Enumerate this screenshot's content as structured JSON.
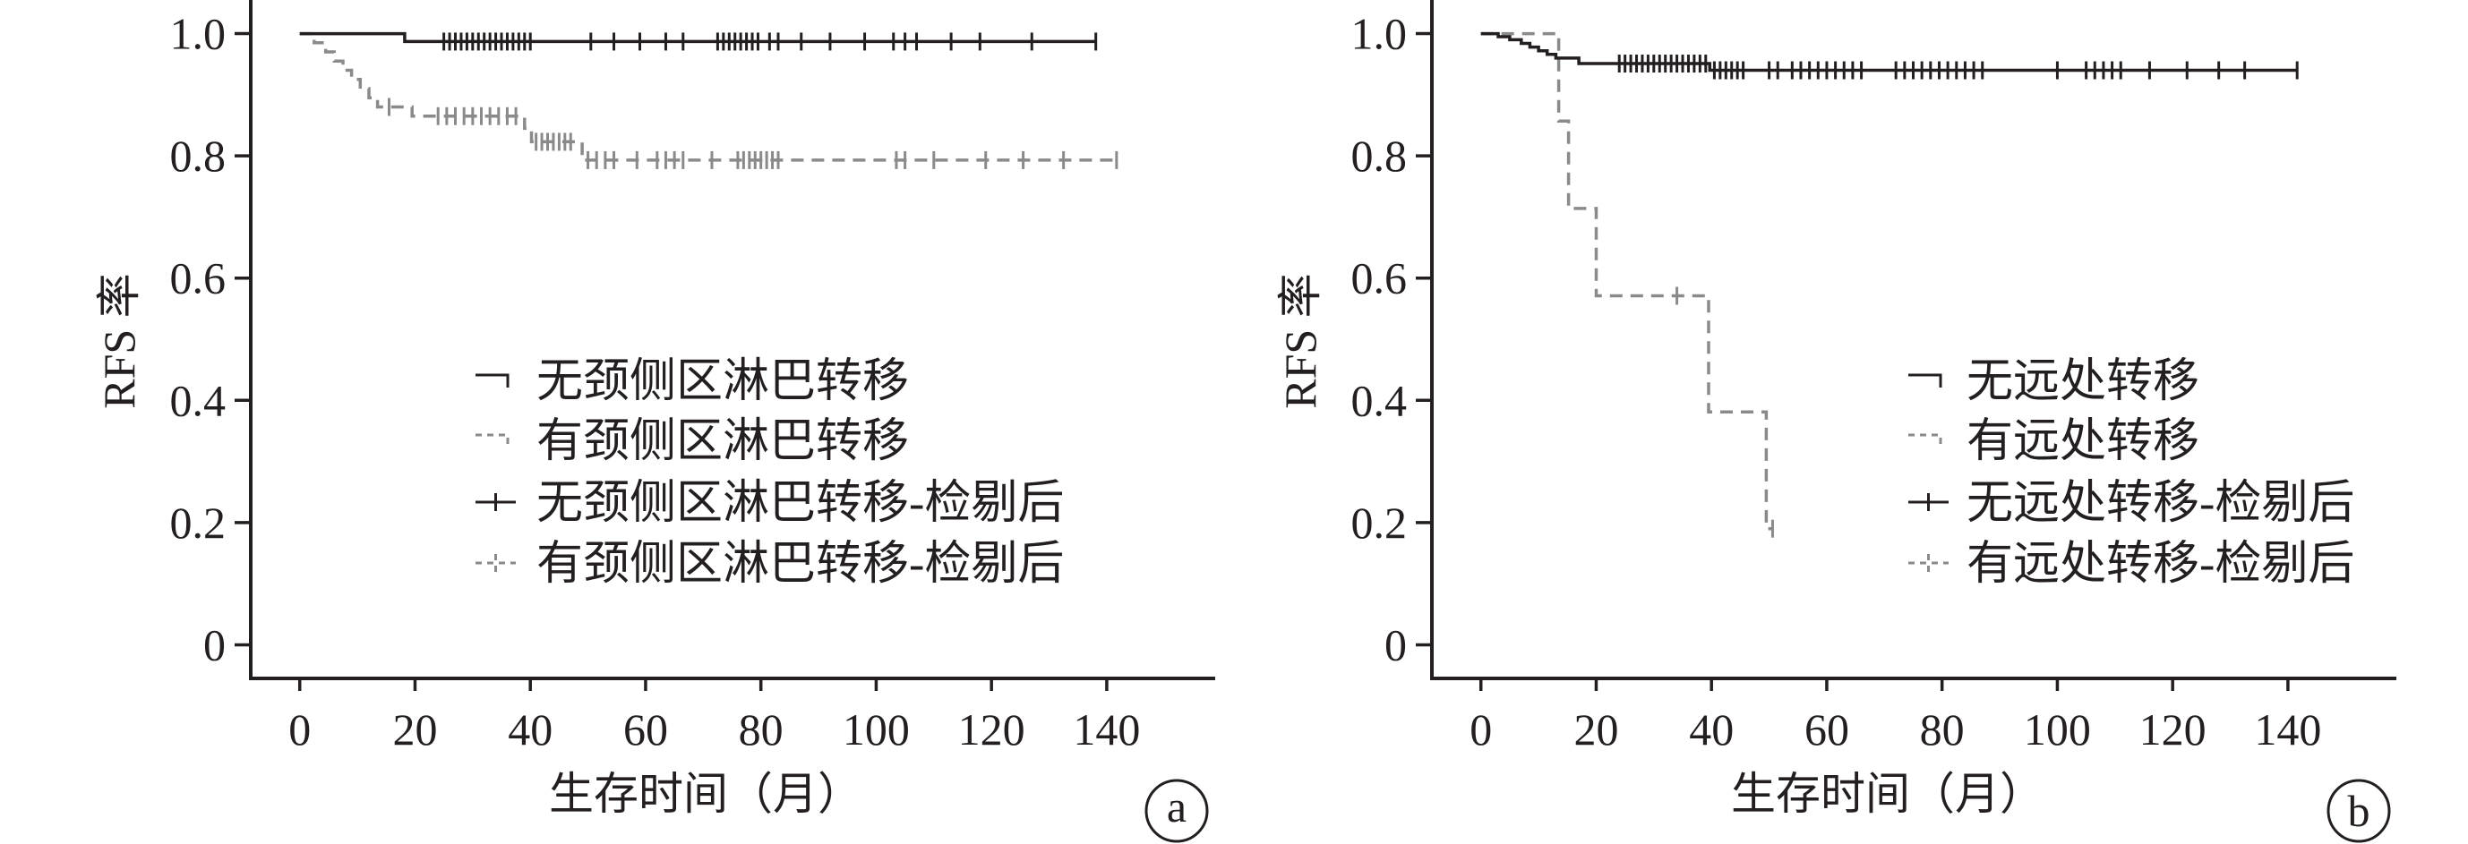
{
  "chart_data": [
    {
      "panel_label": "a",
      "type": "line",
      "drawstyle": "steps-post",
      "xlabel": "生存时间（月）",
      "ylabel": "RFS 率",
      "x_ticks": [
        "0",
        "20",
        "40",
        "60",
        "80",
        "100",
        "120",
        "140"
      ],
      "y_ticks": [
        "0",
        "0.2",
        "0.4",
        "0.6",
        "0.8",
        "1.0"
      ],
      "xlim": [
        -8.5,
        158.5
      ],
      "ylim": [
        -0.055,
        1.055
      ],
      "grid": false,
      "legend_position": "center",
      "series": [
        {
          "name": "无颈侧区淋巴转移",
          "kind": "survival",
          "color": "#231f20",
          "dashed": false,
          "x": [
            0,
            18.2,
            138.1
          ],
          "y": [
            1.0,
            0.987,
            0.987
          ]
        },
        {
          "name": "有颈侧区淋巴转移",
          "kind": "survival",
          "color": "#8a8a8a",
          "dashed": true,
          "x": [
            0,
            2.5,
            4.5,
            6,
            7.5,
            9,
            10.5,
            12,
            13.5,
            19.5,
            39,
            40.2,
            49,
            141.7
          ],
          "y": [
            1.0,
            0.985,
            0.97,
            0.955,
            0.94,
            0.925,
            0.91,
            0.895,
            0.88,
            0.865,
            0.845,
            0.823,
            0.793,
            0.793
          ]
        },
        {
          "name": "无颈侧区淋巴转移-检剔后",
          "kind": "censored",
          "color": "#231f20",
          "dashed": false,
          "x": [
            25,
            26,
            27,
            28,
            29,
            30,
            31,
            32,
            33,
            34,
            35,
            36,
            37,
            38,
            39,
            40,
            50.5,
            54.5,
            59,
            63.5,
            66.5,
            72.5,
            73.5,
            74.5,
            75.5,
            76.5,
            77.5,
            78.5,
            79.5,
            81.5,
            83,
            87,
            92,
            98,
            103,
            105,
            107,
            113,
            118,
            127,
            138.1
          ],
          "y": [
            0.987,
            0.987,
            0.987,
            0.987,
            0.987,
            0.987,
            0.987,
            0.987,
            0.987,
            0.987,
            0.987,
            0.987,
            0.987,
            0.987,
            0.987,
            0.987,
            0.987,
            0.987,
            0.987,
            0.987,
            0.987,
            0.987,
            0.987,
            0.987,
            0.987,
            0.987,
            0.987,
            0.987,
            0.987,
            0.987,
            0.987,
            0.987,
            0.987,
            0.987,
            0.987,
            0.987,
            0.987,
            0.987,
            0.987,
            0.987,
            0.987
          ]
        },
        {
          "name": "有颈侧区淋巴转移-检剔后",
          "kind": "censored",
          "color": "#8a8a8a",
          "dashed": true,
          "x": [
            15.5,
            24,
            25.5,
            27,
            28.5,
            30,
            31.5,
            33,
            34.5,
            36,
            37.5,
            41,
            42,
            43,
            44,
            45,
            46,
            47,
            50,
            51.5,
            53,
            54.5,
            58.5,
            62,
            63.5,
            65,
            66.5,
            71.5,
            76,
            77,
            78,
            79,
            80,
            81,
            82,
            83,
            103.5,
            105,
            110,
            119,
            125.5,
            132.5,
            141.7
          ],
          "y": [
            0.88,
            0.865,
            0.865,
            0.865,
            0.865,
            0.865,
            0.865,
            0.865,
            0.865,
            0.865,
            0.865,
            0.823,
            0.823,
            0.823,
            0.823,
            0.823,
            0.823,
            0.823,
            0.793,
            0.793,
            0.793,
            0.793,
            0.793,
            0.793,
            0.793,
            0.793,
            0.793,
            0.793,
            0.793,
            0.793,
            0.793,
            0.793,
            0.793,
            0.793,
            0.793,
            0.793,
            0.793,
            0.793,
            0.793,
            0.793,
            0.793,
            0.793,
            0.793
          ]
        }
      ]
    },
    {
      "panel_label": "b",
      "type": "line",
      "drawstyle": "steps-post",
      "xlabel": "生存时间（月）",
      "ylabel": "RFS 率",
      "x_ticks": [
        "0",
        "20",
        "40",
        "60",
        "80",
        "100",
        "120",
        "140"
      ],
      "y_ticks": [
        "0",
        "0.2",
        "0.4",
        "0.6",
        "0.8",
        "1.0"
      ],
      "xlim": [
        -8.5,
        158.5
      ],
      "ylim": [
        -0.055,
        1.055
      ],
      "grid": false,
      "legend_position": "center-right",
      "series": [
        {
          "name": "无远处转移",
          "kind": "survival",
          "color": "#231f20",
          "dashed": false,
          "x": [
            0,
            3,
            5,
            7,
            8.5,
            10,
            11.5,
            13,
            17,
            39.7,
            141.6
          ],
          "y": [
            1.0,
            0.995,
            0.99,
            0.984,
            0.978,
            0.972,
            0.966,
            0.96,
            0.951,
            0.94,
            0.94
          ]
        },
        {
          "name": "有远处转移",
          "kind": "survival",
          "color": "#8a8a8a",
          "dashed": true,
          "x": [
            0,
            13.5,
            15.2,
            20,
            39.5,
            49.5,
            50.6
          ],
          "y": [
            1.0,
            0.857,
            0.714,
            0.571,
            0.381,
            0.19,
            0.19
          ]
        },
        {
          "name": "无远处转移-检剔后",
          "kind": "censored",
          "color": "#231f20",
          "dashed": false,
          "x": [
            24,
            25,
            26,
            27,
            28,
            29,
            30,
            31,
            32,
            33,
            34,
            35,
            36,
            37,
            38,
            39,
            40.5,
            41.5,
            42.5,
            43.5,
            44.5,
            45.5,
            50,
            51.5,
            54,
            55.5,
            57,
            58.5,
            60,
            61.5,
            63,
            64.5,
            66,
            72,
            73.5,
            75,
            76.5,
            78,
            79.5,
            81,
            82.5,
            84,
            85.5,
            87,
            100,
            105,
            106.5,
            108,
            109.5,
            111,
            116,
            122.5,
            128,
            132.5,
            141.6
          ],
          "y": [
            0.951,
            0.951,
            0.951,
            0.951,
            0.951,
            0.951,
            0.951,
            0.951,
            0.951,
            0.951,
            0.951,
            0.951,
            0.951,
            0.951,
            0.951,
            0.951,
            0.94,
            0.94,
            0.94,
            0.94,
            0.94,
            0.94,
            0.94,
            0.94,
            0.94,
            0.94,
            0.94,
            0.94,
            0.94,
            0.94,
            0.94,
            0.94,
            0.94,
            0.94,
            0.94,
            0.94,
            0.94,
            0.94,
            0.94,
            0.94,
            0.94,
            0.94,
            0.94,
            0.94,
            0.94,
            0.94,
            0.94,
            0.94,
            0.94,
            0.94,
            0.94,
            0.94,
            0.94,
            0.94,
            0.94
          ]
        },
        {
          "name": "有远处转移-检剔后",
          "kind": "censored",
          "color": "#8a8a8a",
          "dashed": true,
          "x": [
            34,
            50.6
          ],
          "y": [
            0.571,
            0.19
          ]
        }
      ]
    }
  ]
}
